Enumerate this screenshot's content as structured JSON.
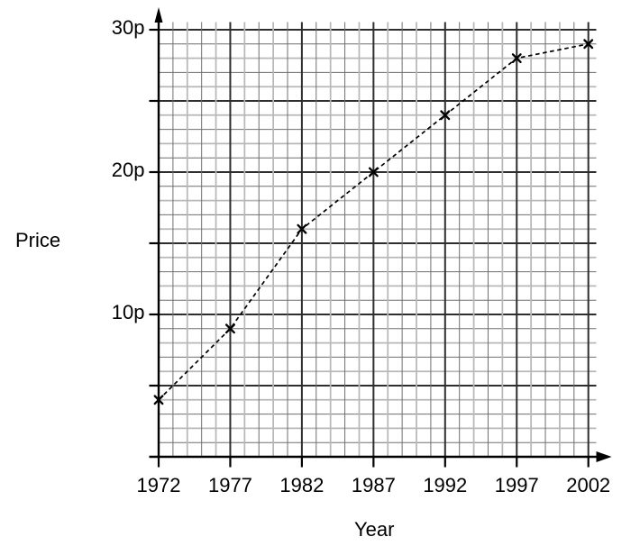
{
  "figure": {
    "background": "#ffffff"
  },
  "chart_data": {
    "type": "line",
    "title": "",
    "xlabel": "Year",
    "ylabel": "Price",
    "x": [
      1972,
      1977,
      1982,
      1987,
      1992,
      1997,
      2002
    ],
    "series": [
      {
        "name": "Price",
        "values": [
          4,
          9,
          16,
          20,
          24,
          28,
          29
        ]
      }
    ],
    "xlim": [
      1972,
      2002
    ],
    "ylim": [
      0,
      30
    ],
    "x_minor_step": 1,
    "x_major_step": 5,
    "y_minor_step": 1,
    "y_major_step": 5,
    "xtick_values": [
      1972,
      1977,
      1982,
      1987,
      1992,
      1997,
      2002
    ],
    "xtick_labels": [
      "1972",
      "1977",
      "1982",
      "1987",
      "1992",
      "1997",
      "2002"
    ],
    "ytick_mark_values": [
      5,
      10,
      15,
      20,
      25,
      30
    ],
    "ytick_labeled": [
      {
        "value": 10,
        "label": "10p"
      },
      {
        "value": 20,
        "label": "20p"
      },
      {
        "value": 30,
        "label": "30p"
      }
    ],
    "grid": "on",
    "legend": "none",
    "line_style": "dashed",
    "marker": "x",
    "colors": {
      "line": "#000000",
      "marker": "#000000",
      "grid_minor": "#6f6f6f",
      "grid_minor_alt": "#b8b8b8",
      "grid_major": "#2e2e2e",
      "axis": "#000000",
      "text": "#000000"
    }
  }
}
